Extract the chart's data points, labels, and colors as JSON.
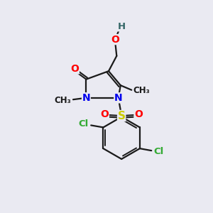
{
  "background_color": "#eaeaf2",
  "bond_color": "#1a1a1a",
  "atom_colors": {
    "O": "#ff0000",
    "N": "#0000ee",
    "S": "#cccc00",
    "Cl": "#33aa33",
    "H": "#336666",
    "C": "#1a1a1a"
  },
  "font_size_atoms": 10,
  "font_size_methyl": 8.5,
  "figsize": [
    3.0,
    3.0
  ],
  "dpi": 100
}
